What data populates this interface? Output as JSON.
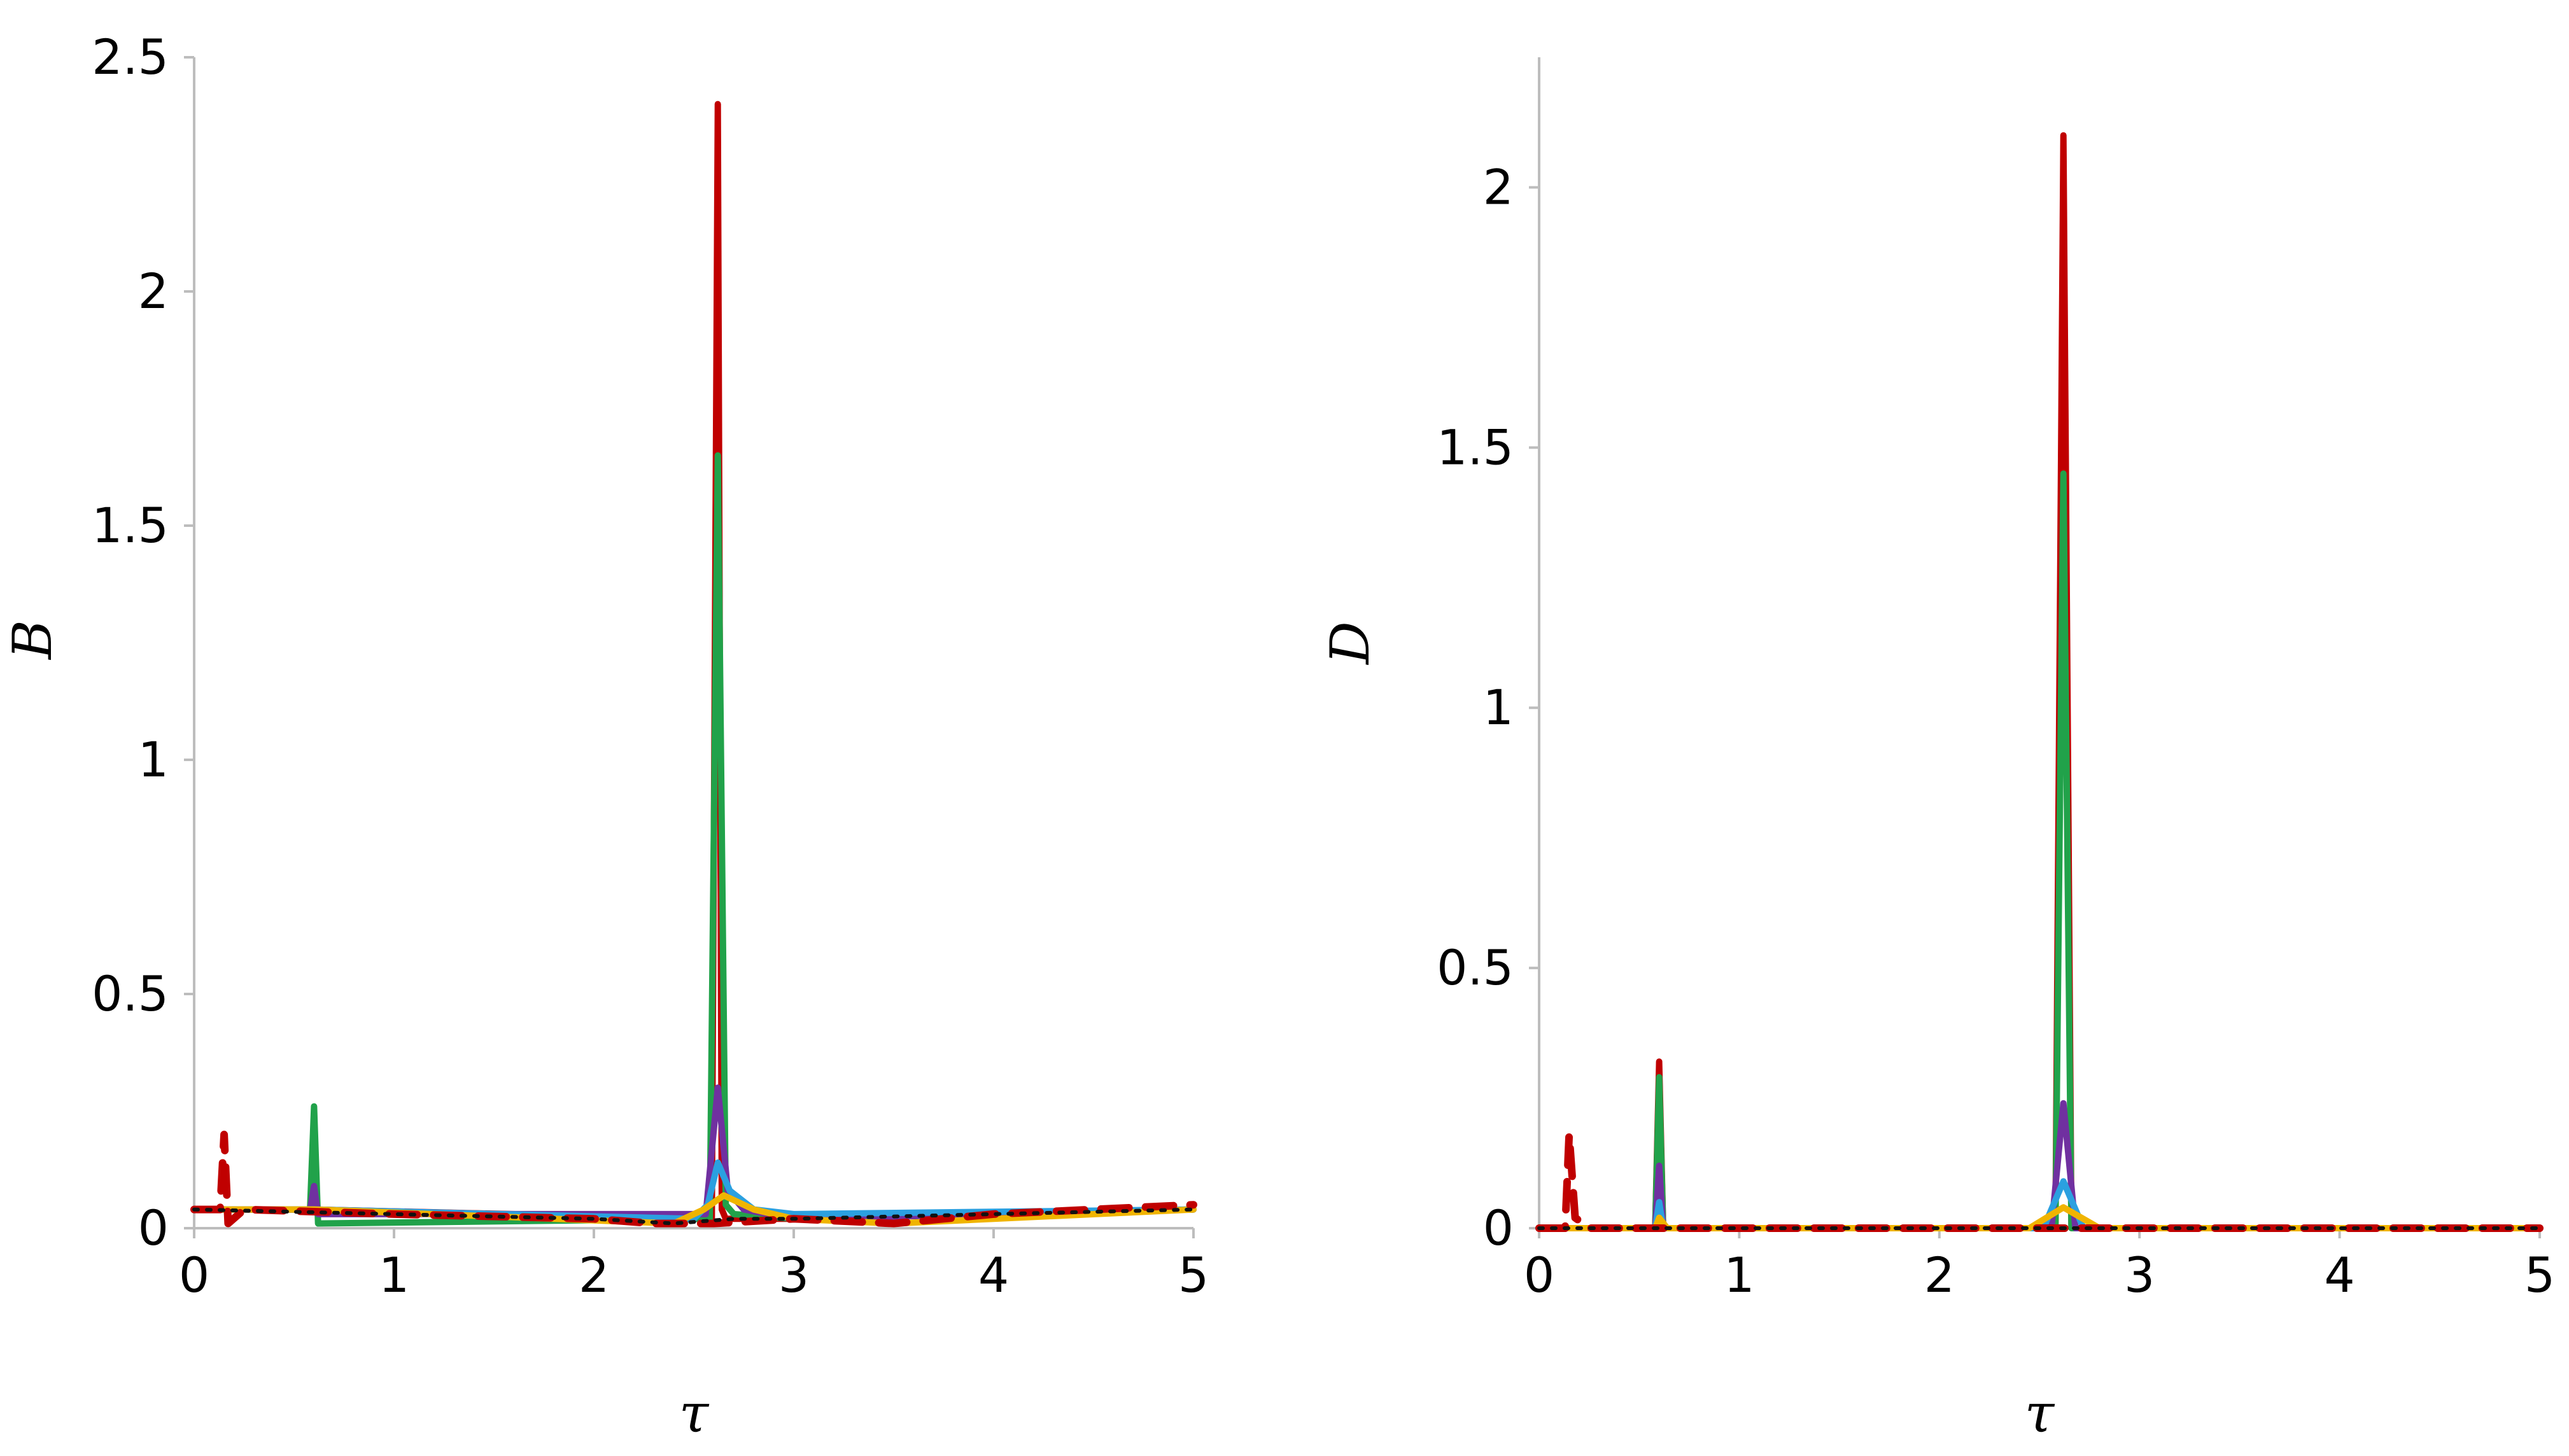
{
  "colors": {
    "axis": "#bdbdbd",
    "red": "#c00000",
    "green": "#21a24a",
    "purple": "#7030a0",
    "blue": "#2ba0e0",
    "yellow": "#f0b400",
    "dotted": "#111111"
  },
  "chart_data": [
    {
      "type": "line",
      "title": "",
      "xlabel": "τ",
      "ylabel": "B",
      "xlim": [
        0,
        5
      ],
      "ylim": [
        0,
        2.5
      ],
      "xticks": [
        "0",
        "1",
        "2",
        "3",
        "4",
        "5"
      ],
      "yticks": [
        "0",
        "0.5",
        "1",
        "1.5",
        "2",
        "2.5"
      ],
      "grid": false,
      "legend": "none",
      "series": [
        {
          "color": "#c00000",
          "style": "solid",
          "x": [
            0,
            0.15,
            0.6,
            2.59,
            2.62,
            2.64,
            2.66,
            2.7,
            3.0,
            5.0
          ],
          "y": [
            0.04,
            0.04,
            0.04,
            0.02,
            2.4,
            0.04,
            0.02,
            0.02,
            0.02,
            0.04
          ]
        },
        {
          "color": "#21a24a",
          "style": "solid",
          "x": [
            0,
            0.58,
            0.6,
            0.62,
            2.58,
            2.62,
            2.66,
            2.7,
            3.0,
            5.0
          ],
          "y": [
            0.04,
            0.04,
            0.26,
            0.01,
            0.02,
            1.65,
            0.05,
            0.03,
            0.02,
            0.04
          ]
        },
        {
          "color": "#7030a0",
          "style": "solid",
          "x": [
            0,
            0.58,
            0.6,
            0.62,
            2.56,
            2.62,
            2.67,
            2.75,
            3.0,
            5.0
          ],
          "y": [
            0.04,
            0.04,
            0.09,
            0.03,
            0.03,
            0.3,
            0.08,
            0.04,
            0.02,
            0.04
          ]
        },
        {
          "color": "#2ba0e0",
          "style": "solid",
          "x": [
            0,
            0.6,
            2.5,
            2.57,
            2.62,
            2.68,
            2.8,
            3.0,
            5.0
          ],
          "y": [
            0.04,
            0.04,
            0.02,
            0.05,
            0.14,
            0.08,
            0.04,
            0.03,
            0.04
          ]
        },
        {
          "color": "#f0b400",
          "style": "solid",
          "x": [
            0,
            0.6,
            2.4,
            2.55,
            2.65,
            2.8,
            3.0,
            3.5,
            5.0
          ],
          "y": [
            0.04,
            0.04,
            0.01,
            0.04,
            0.07,
            0.04,
            0.02,
            0.01,
            0.04
          ]
        },
        {
          "color": "#c00000",
          "style": "dashed",
          "x": [
            0,
            0.13,
            0.15,
            0.17,
            0.25,
            1.0,
            2.0,
            2.3,
            2.6,
            3.0,
            3.5,
            4.0,
            4.5,
            5.0
          ],
          "y": [
            0.04,
            0.04,
            0.2,
            0.01,
            0.04,
            0.03,
            0.02,
            0.01,
            0.01,
            0.02,
            0.01,
            0.03,
            0.04,
            0.05
          ]
        },
        {
          "color": "#111111",
          "style": "dotted",
          "x": [
            0,
            1.0,
            2.0,
            2.4,
            2.7,
            3.0,
            4.0,
            5.0
          ],
          "y": [
            0.04,
            0.03,
            0.02,
            0.01,
            0.02,
            0.02,
            0.03,
            0.04
          ]
        }
      ]
    },
    {
      "type": "line",
      "title": "",
      "xlabel": "τ",
      "ylabel": "D",
      "xlim": [
        0,
        5
      ],
      "ylim": [
        0,
        2.25
      ],
      "xticks": [
        "0",
        "1",
        "2",
        "3",
        "4",
        "5"
      ],
      "yticks": [
        "0",
        "0.5",
        "1",
        "1.5",
        "2"
      ],
      "grid": false,
      "legend": "none",
      "series": [
        {
          "color": "#c00000",
          "style": "solid",
          "x": [
            0,
            0.58,
            0.6,
            0.62,
            2.58,
            2.62,
            2.66,
            5.0
          ],
          "y": [
            0.0,
            0.0,
            0.32,
            0.0,
            0.0,
            2.1,
            0.0,
            0.0
          ]
        },
        {
          "color": "#21a24a",
          "style": "solid",
          "x": [
            0,
            0.58,
            0.6,
            0.62,
            2.58,
            2.62,
            2.66,
            5.0
          ],
          "y": [
            0.0,
            0.0,
            0.29,
            0.0,
            0.0,
            1.45,
            0.0,
            0.0
          ]
        },
        {
          "color": "#7030a0",
          "style": "solid",
          "x": [
            0,
            0.58,
            0.6,
            0.62,
            2.56,
            2.62,
            2.68,
            5.0
          ],
          "y": [
            0.0,
            0.0,
            0.12,
            0.0,
            0.0,
            0.24,
            0.0,
            0.0
          ]
        },
        {
          "color": "#2ba0e0",
          "style": "solid",
          "x": [
            0,
            0.58,
            0.6,
            0.62,
            2.52,
            2.62,
            2.72,
            5.0
          ],
          "y": [
            0.0,
            0.0,
            0.05,
            0.0,
            0.0,
            0.09,
            0.0,
            0.0
          ]
        },
        {
          "color": "#f0b400",
          "style": "solid",
          "x": [
            0,
            0.58,
            0.6,
            0.64,
            2.45,
            2.62,
            2.8,
            5.0
          ],
          "y": [
            0.0,
            0.0,
            0.02,
            0.0,
            0.0,
            0.04,
            0.0,
            0.0
          ]
        },
        {
          "color": "#c00000",
          "style": "dashed",
          "x": [
            0,
            0.13,
            0.15,
            0.18,
            0.25,
            5.0
          ],
          "y": [
            0.0,
            0.0,
            0.18,
            0.02,
            0.0,
            0.0
          ]
        },
        {
          "color": "#111111",
          "style": "dotted",
          "x": [
            0,
            5.0
          ],
          "y": [
            0.0,
            0.0
          ]
        }
      ]
    }
  ]
}
